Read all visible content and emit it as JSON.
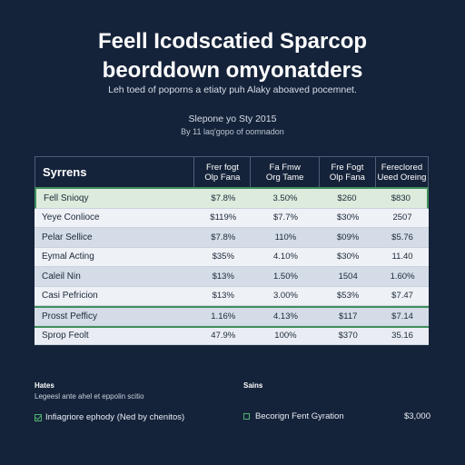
{
  "title": {
    "line1": "Feell Icodscatied Sparcop",
    "line2": "beorddown omyonatders"
  },
  "subtitle": "Leh toed of poporns a etiaty puh Alaky aboaved pocemnet.",
  "caption": {
    "line1": "Slepone yo Sty 2015",
    "line2": "By 11 laq'gopo of oomnadon"
  },
  "table": {
    "header": {
      "first": "Syrrens",
      "columns": [
        "Frer fogt\nOlp Fana",
        "Fa Fmw\nOrg Tame",
        "Fre Fogt\nOlp Fana",
        "Fereclored\nUeed Oreing"
      ]
    },
    "rows": [
      {
        "label": "Fell Snioqy",
        "values": [
          "$7.8%",
          "3.50%",
          "$260",
          "$830"
        ]
      },
      {
        "label": "Yeye Conlioce",
        "values": [
          "$119%",
          "$7.7%",
          "$30%",
          "2507"
        ]
      },
      {
        "label": "Pelar Sellice",
        "values": [
          "$7.8%",
          "110%",
          "$09%",
          "$5.76"
        ]
      },
      {
        "label": "Eymal Acting",
        "values": [
          "$35%",
          "4.10%",
          "$30%",
          "11.40"
        ]
      },
      {
        "label": "Caleil Nin",
        "values": [
          "$13%",
          "1.50%",
          "1504",
          "1.60%"
        ]
      },
      {
        "label": "Casi Pefricion",
        "values": [
          "$13%",
          "3.00%",
          "$53%",
          "$7.47"
        ]
      },
      {
        "label": "Prosst Pefficy",
        "values": [
          "1.16%",
          "4.13%",
          "$117",
          "$7.14"
        ]
      }
    ],
    "total": {
      "label": "Sprop Feolt",
      "values": [
        "47.9%",
        "100%",
        "$370",
        "35.16"
      ]
    }
  },
  "notes": {
    "left_heading": "Hates",
    "left_text": "Legeesl ante ahel et eppolin scitio",
    "left_check": "Infiagriore ephody (Ned by chenitos)",
    "right_heading": "Sains",
    "right_item": "Becorign Fent Gyration",
    "right_amount": "$3,000"
  },
  "colors": {
    "background": "#15233a",
    "accent_green": "#3f8f5d",
    "row_light": "#eef1f6",
    "row_mid": "#d4dce7"
  }
}
